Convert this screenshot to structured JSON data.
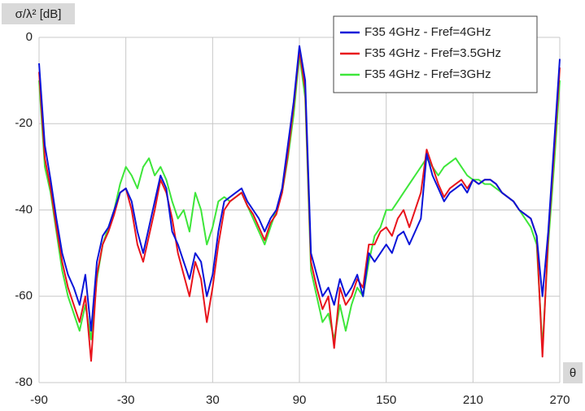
{
  "chart_data": {
    "type": "line",
    "y_label": "σ/λ² [dB]",
    "x_label": "θ",
    "xlim": [
      -90,
      270
    ],
    "ylim": [
      -80,
      0
    ],
    "xticks": [
      -90,
      -30,
      30,
      90,
      150,
      210,
      270
    ],
    "yticks": [
      0,
      -20,
      -40,
      -60,
      -80
    ],
    "grid": true,
    "legend": "top-right",
    "x": [
      -90,
      -86,
      -82,
      -78,
      -74,
      -70,
      -66,
      -62,
      -58,
      -54,
      -50,
      -46,
      -42,
      -38,
      -34,
      -30,
      -26,
      -22,
      -18,
      -14,
      -10,
      -6,
      -2,
      2,
      6,
      10,
      14,
      18,
      22,
      26,
      30,
      34,
      38,
      42,
      46,
      50,
      54,
      58,
      62,
      66,
      70,
      74,
      78,
      82,
      86,
      90,
      94,
      98,
      102,
      106,
      110,
      114,
      118,
      122,
      126,
      130,
      134,
      138,
      142,
      146,
      150,
      154,
      158,
      162,
      166,
      170,
      174,
      178,
      182,
      186,
      190,
      194,
      198,
      202,
      206,
      210,
      214,
      218,
      222,
      226,
      230,
      234,
      238,
      242,
      246,
      250,
      254,
      258,
      262,
      266,
      270
    ],
    "series": [
      {
        "name": "F35 4GHz - Fref=4GHz",
        "color": "#0a14d8",
        "values": [
          -6,
          -25,
          -33,
          -42,
          -50,
          -55,
          -58,
          -62,
          -55,
          -68,
          -52,
          -46,
          -44,
          -40,
          -36,
          -35,
          -38,
          -45,
          -50,
          -44,
          -38,
          -32,
          -35,
          -45,
          -48,
          -52,
          -56,
          -50,
          -52,
          -60,
          -55,
          -45,
          -38,
          -37,
          -36,
          -35,
          -38,
          -40,
          -42,
          -45,
          -42,
          -40,
          -35,
          -25,
          -15,
          -2,
          -10,
          -50,
          -55,
          -60,
          -58,
          -62,
          -56,
          -60,
          -58,
          -55,
          -60,
          -50,
          -52,
          -50,
          -48,
          -50,
          -46,
          -45,
          -48,
          -45,
          -42,
          -27,
          -32,
          -35,
          -38,
          -36,
          -35,
          -34,
          -36,
          -33,
          -34,
          -33,
          -33,
          -34,
          -36,
          -37,
          -38,
          -40,
          -41,
          -42,
          -46,
          -60,
          -45,
          -25,
          -5
        ]
      },
      {
        "name": "F35 4GHz - Fref=3.5GHz",
        "color": "#e8141c",
        "values": [
          -8,
          -28,
          -35,
          -44,
          -52,
          -58,
          -62,
          -66,
          -60,
          -75,
          -55,
          -48,
          -45,
          -41,
          -36,
          -35,
          -40,
          -48,
          -52,
          -46,
          -40,
          -33,
          -36,
          -42,
          -50,
          -55,
          -60,
          -52,
          -56,
          -66,
          -58,
          -48,
          -40,
          -38,
          -37,
          -36,
          -39,
          -41,
          -44,
          -47,
          -43,
          -41,
          -36,
          -27,
          -16,
          -3,
          -12,
          -52,
          -58,
          -63,
          -60,
          -72,
          -58,
          -62,
          -60,
          -56,
          -58,
          -48,
          -48,
          -45,
          -44,
          -46,
          -42,
          -40,
          -44,
          -40,
          -36,
          -26,
          -30,
          -34,
          -37,
          -35,
          -34,
          -33,
          -35,
          -33,
          -34,
          -33,
          -33,
          -34,
          -36,
          -37,
          -38,
          -40,
          -41,
          -42,
          -46,
          -74,
          -46,
          -27,
          -7
        ]
      },
      {
        "name": "F35 4GHz - Fref=3GHz",
        "color": "#3ee63a",
        "values": [
          -10,
          -30,
          -36,
          -45,
          -54,
          -60,
          -64,
          -68,
          -62,
          -70,
          -56,
          -48,
          -44,
          -40,
          -34,
          -30,
          -32,
          -35,
          -30,
          -28,
          -32,
          -30,
          -33,
          -38,
          -42,
          -40,
          -45,
          -36,
          -40,
          -48,
          -44,
          -38,
          -37,
          -38,
          -37,
          -36,
          -39,
          -42,
          -45,
          -48,
          -44,
          -40,
          -36,
          -28,
          -18,
          -4,
          -14,
          -54,
          -60,
          -66,
          -64,
          -70,
          -62,
          -68,
          -62,
          -58,
          -60,
          -52,
          -46,
          -44,
          -40,
          -40,
          -38,
          -36,
          -34,
          -32,
          -30,
          -28,
          -30,
          -32,
          -30,
          -29,
          -28,
          -30,
          -32,
          -33,
          -33,
          -34,
          -34,
          -35,
          -36,
          -37,
          -38,
          -40,
          -42,
          -44,
          -48,
          -72,
          -48,
          -30,
          -10
        ]
      }
    ]
  }
}
